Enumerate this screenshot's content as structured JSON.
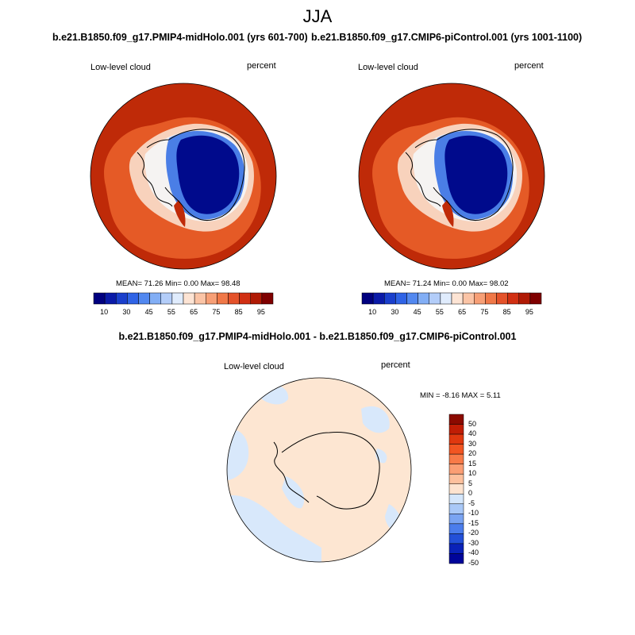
{
  "season": "JJA",
  "panels": [
    {
      "run": "b.e21.B1850.f09_g17.PMIP4-midHolo.001 (yrs 601-700)",
      "variable": "Low-level cloud",
      "units": "percent",
      "stats": "MEAN=  71.26  Min=   0.00  Max=  98.48"
    },
    {
      "run": "b.e21.B1850.f09_g17.CMIP6-piControl.001 (yrs 1001-1100)",
      "variable": "Low-level cloud",
      "units": "percent",
      "stats": "MEAN=  71.24  Min=   0.00  Max=  98.02"
    }
  ],
  "difference": {
    "title": "b.e21.B1850.f09_g17.PMIP4-midHolo.001 - b.e21.B1850.f09_g17.CMIP6-piControl.001",
    "variable": "Low-level cloud",
    "units": "percent",
    "stats": "MIN =  -8.16 MAX =   5.11"
  },
  "colorbar_main": {
    "labels": [
      "10",
      "30",
      "45",
      "55",
      "65",
      "75",
      "85",
      "95"
    ],
    "colors": [
      "#00007f",
      "#0a1aa8",
      "#1a3fcc",
      "#2f63e6",
      "#5288f0",
      "#82aef5",
      "#b3cdf9",
      "#e0ecfd",
      "#fde4d4",
      "#fbc4a6",
      "#f79f76",
      "#f07848",
      "#e4522a",
      "#d12f12",
      "#b01a05",
      "#7f0000"
    ]
  },
  "colorbar_diff": {
    "labels": [
      "50",
      "40",
      "30",
      "20",
      "15",
      "10",
      "5",
      "0",
      "-5",
      "-10",
      "-15",
      "-20",
      "-30",
      "-40",
      "-50"
    ],
    "colors": [
      "#8b0a00",
      "#c01d05",
      "#e0380f",
      "#f25522",
      "#f87a48",
      "#fb9e74",
      "#fdc09d",
      "#fde3cf",
      "#d4e6fb",
      "#a9c8f7",
      "#7aa4f2",
      "#4b7dec",
      "#2350d8",
      "#0a22b8",
      "#00059a"
    ]
  },
  "map_colors": {
    "ocean_high": "#bf2a08",
    "ocean_mid": "#e55a26",
    "coast_low": "#f8d2bc",
    "coast_white": "#f5f3f2",
    "ice_edge": "#4a7ee6",
    "ice_core": "#000a8c",
    "diff_pos": "#fde6d2",
    "diff_neg": "#d8e8fb"
  }
}
